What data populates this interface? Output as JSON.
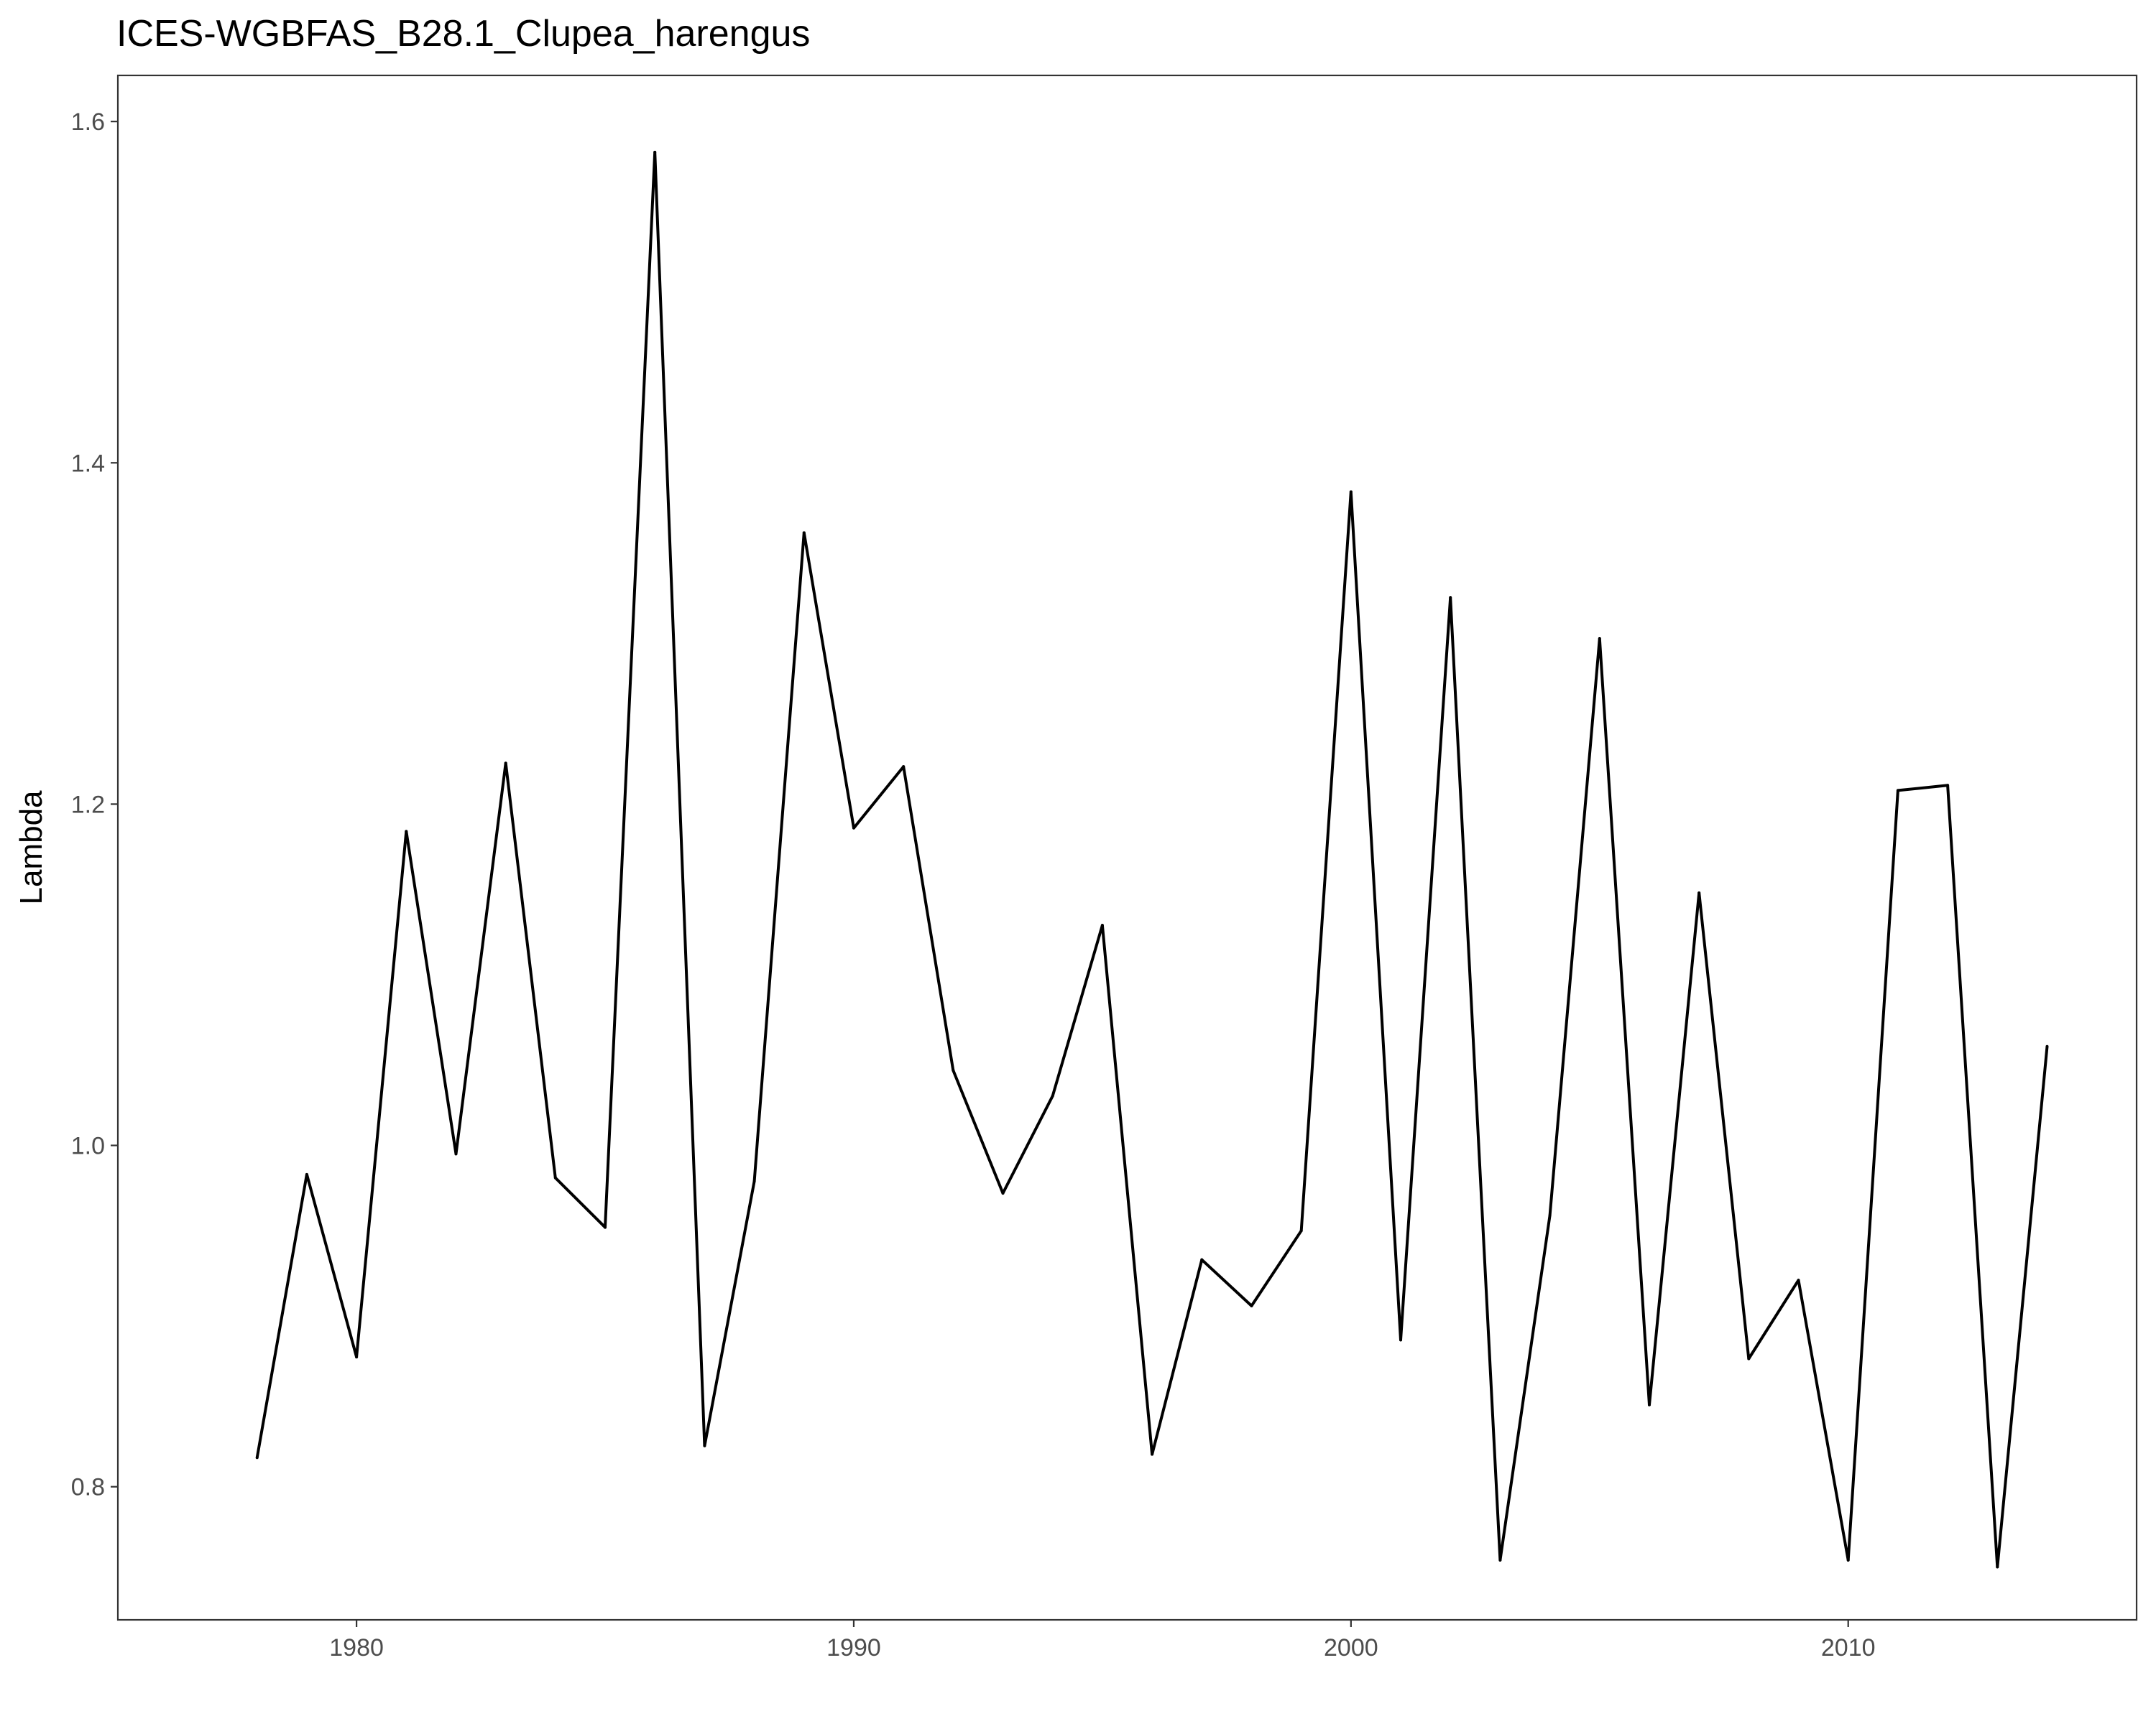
{
  "chart_data": {
    "type": "line",
    "title": "ICES-WGBFAS_B28.1_Clupea_harengus",
    "xlabel": "",
    "ylabel": "Lambda",
    "xlim": [
      1975.2,
      2015.8
    ],
    "ylim": [
      0.722,
      1.627
    ],
    "x_ticks": [
      1980,
      1990,
      2000,
      2010
    ],
    "y_ticks": [
      0.8,
      1.0,
      1.2,
      1.4,
      1.6
    ],
    "x_tick_labels": [
      "1980",
      "1990",
      "2000",
      "2010"
    ],
    "y_tick_labels": [
      "0.8",
      "1.0",
      "1.2",
      "1.4",
      "1.6"
    ],
    "grid": false,
    "line_color": "#000000",
    "series": [
      {
        "x": [
          1978,
          1979,
          1980,
          1981,
          1982,
          1983,
          1984,
          1985,
          1986,
          1987,
          1988,
          1989,
          1990,
          1991,
          1992,
          1993,
          1994,
          1995,
          1996,
          1997,
          1998,
          1999,
          2000,
          2001,
          2002,
          2003,
          2004,
          2005,
          2006,
          2007,
          2008,
          2009,
          2010,
          2011,
          2012,
          2013,
          2014
        ],
        "values": [
          0.817,
          0.983,
          0.876,
          1.184,
          0.995,
          1.224,
          0.981,
          0.952,
          1.582,
          0.824,
          0.979,
          1.359,
          1.186,
          1.222,
          1.044,
          0.972,
          1.029,
          1.129,
          0.819,
          0.933,
          0.906,
          0.95,
          1.383,
          0.886,
          1.321,
          0.757,
          0.959,
          1.297,
          0.848,
          1.148,
          0.875,
          0.921,
          0.757,
          1.208,
          1.211,
          0.753,
          1.058
        ]
      }
    ]
  }
}
